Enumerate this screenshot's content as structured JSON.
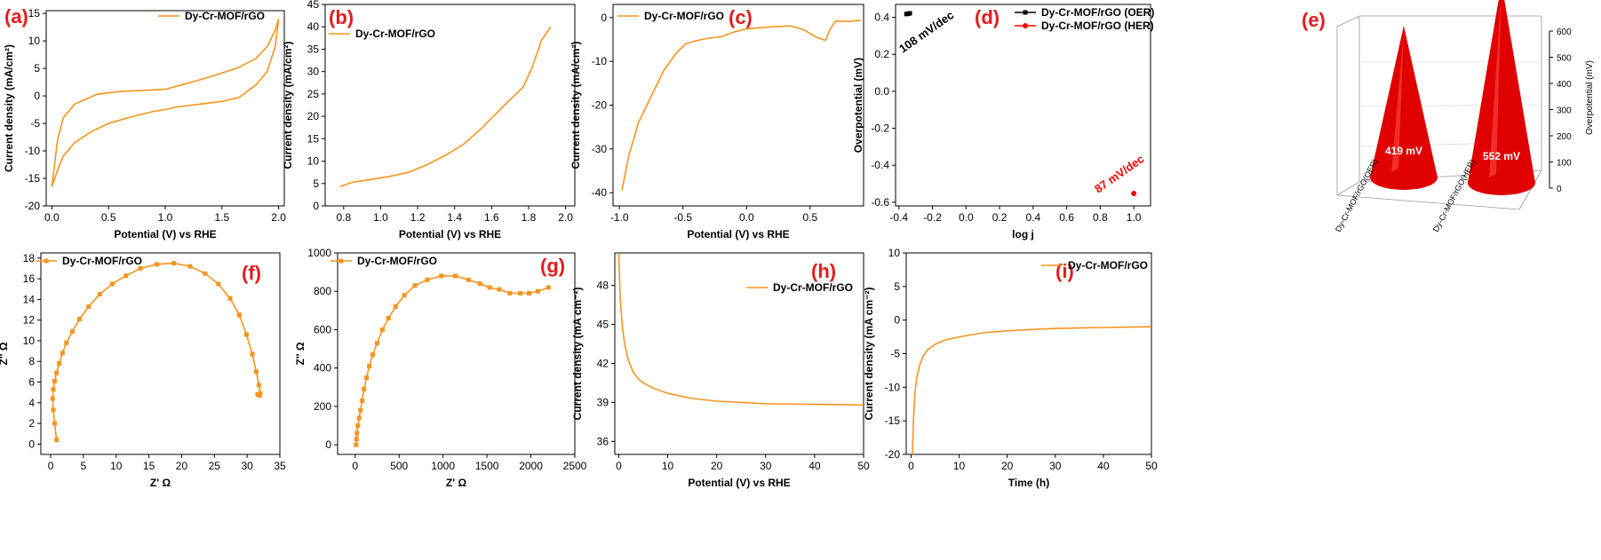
{
  "colors": {
    "series": "#f7941d",
    "oer": "#000000",
    "her": "#ff0000",
    "label": "#e41a1c",
    "cone": "#e00000"
  },
  "chart_data": [
    {
      "id": "a",
      "panel_label": "(a)",
      "type": "line",
      "xlabel": "Potential (V) vs RHE",
      "ylabel": "Current density (mA/cm²)",
      "xlim": [
        -0.05,
        2.05
      ],
      "ylim": [
        -20,
        15.5
      ],
      "xticks": [
        0.0,
        0.5,
        1.0,
        1.5,
        2.0
      ],
      "xtick_labels": [
        "0.0",
        "0.5",
        "1.0",
        "1.5",
        "2.0"
      ],
      "yticks": [
        -20,
        -15,
        -10,
        -5,
        0,
        5,
        10,
        15
      ],
      "ytick_labels": [
        "-20",
        "-15",
        "-10",
        "-5",
        "0",
        "5",
        "10",
        "15"
      ],
      "legend": [
        "Dy-Cr-MOF/rGO"
      ],
      "series": [
        {
          "name": "Dy-Cr-MOF/rGO",
          "x": [
            0.0,
            0.05,
            0.1,
            0.2,
            0.35,
            0.5,
            0.7,
            0.9,
            1.0,
            1.1,
            1.3,
            1.5,
            1.65,
            1.8,
            1.9,
            1.97,
            2.0,
            1.97,
            1.9,
            1.8,
            1.65,
            1.55,
            1.4,
            1.2,
            1.0,
            0.8,
            0.6,
            0.4,
            0.2,
            0.1,
            0.05,
            0.0
          ],
          "y": [
            -16.5,
            -13.5,
            -11,
            -8.5,
            -6.5,
            -5.0,
            -3.8,
            -2.8,
            -2.5,
            -2.0,
            -1.5,
            -1.0,
            -0.3,
            2.0,
            4.5,
            9.0,
            14.0,
            12.0,
            9.0,
            6.8,
            5.2,
            4.5,
            3.5,
            2.3,
            1.2,
            1.0,
            0.8,
            0.3,
            -1.5,
            -4.0,
            -8.0,
            -16.5
          ]
        }
      ]
    },
    {
      "id": "b",
      "panel_label": "(b)",
      "type": "line",
      "xlabel": "Potential (V) vs RHE",
      "ylabel": "Current density (mA/cm²)",
      "xlim": [
        0.7,
        2.05
      ],
      "ylim": [
        0,
        45
      ],
      "xticks": [
        0.8,
        1.0,
        1.2,
        1.4,
        1.6,
        1.8,
        2.0
      ],
      "xtick_labels": [
        "0.8",
        "1.0",
        "1.2",
        "1.4",
        "1.6",
        "1.8",
        "2.0"
      ],
      "yticks": [
        0,
        5,
        10,
        15,
        20,
        25,
        30,
        35,
        40,
        45
      ],
      "ytick_labels": [
        "0",
        "5",
        "10",
        "15",
        "20",
        "25",
        "30",
        "35",
        "40",
        "45"
      ],
      "legend": [
        "Dy-Cr-MOF/rGO"
      ],
      "series": [
        {
          "name": "Dy-Cr-MOF/rGO",
          "x": [
            0.78,
            0.85,
            0.95,
            1.05,
            1.15,
            1.25,
            1.35,
            1.45,
            1.55,
            1.65,
            1.72,
            1.77,
            1.82,
            1.87,
            1.92
          ],
          "y": [
            4.3,
            5.3,
            5.9,
            6.6,
            7.5,
            9.2,
            11.3,
            13.8,
            17.5,
            21.7,
            24.5,
            26.5,
            31,
            37,
            40
          ]
        }
      ]
    },
    {
      "id": "c",
      "panel_label": "(c)",
      "type": "line",
      "xlabel": "Potential (V) vs RHE",
      "ylabel": "Current density (mA/cm²)",
      "xlim": [
        -1.05,
        0.92
      ],
      "ylim": [
        -43,
        3
      ],
      "xticks": [
        -1.0,
        -0.5,
        0.0,
        0.5
      ],
      "xtick_labels": [
        "-1.0",
        "-0.5",
        "0.0",
        "0.5"
      ],
      "yticks": [
        -40,
        -30,
        -20,
        -10,
        0
      ],
      "ytick_labels": [
        "-40",
        "-30",
        "-20",
        "-10",
        "0"
      ],
      "legend": [
        "Dy-Cr-MOF/rGO"
      ],
      "series": [
        {
          "name": "Dy-Cr-MOF/rGO",
          "x": [
            -0.98,
            -0.93,
            -0.85,
            -0.75,
            -0.65,
            -0.55,
            -0.48,
            -0.4,
            -0.3,
            -0.2,
            -0.1,
            0.0,
            0.2,
            0.35,
            0.45,
            0.55,
            0.62,
            0.66,
            0.7,
            0.8,
            0.9
          ],
          "y": [
            -39.5,
            -32,
            -24,
            -18,
            -12,
            -8,
            -6,
            -5.3,
            -4.7,
            -4.4,
            -3.3,
            -2.6,
            -2.1,
            -1.9,
            -2.8,
            -4.5,
            -5.2,
            -2.5,
            -0.8,
            -0.9,
            -0.6
          ]
        }
      ]
    },
    {
      "id": "d",
      "panel_label": "(d)",
      "type": "scatter",
      "xlabel": "log j",
      "ylabel": "Overpotential (mV)",
      "xlim": [
        -0.42,
        1.1
      ],
      "ylim": [
        -0.62,
        0.47
      ],
      "xticks": [
        -0.4,
        -0.2,
        0.0,
        0.2,
        0.4,
        0.6,
        0.8,
        1.0
      ],
      "xtick_labels": [
        "-0.4",
        "-0.2",
        "0.0",
        "0.2",
        "0.4",
        "0.6",
        "0.8",
        "1.0"
      ],
      "yticks": [
        -0.6,
        -0.4,
        -0.2,
        0.0,
        0.2,
        0.4
      ],
      "ytick_labels": [
        "-0.6",
        "-0.4",
        "-0.2",
        "0.0",
        "0.2",
        "0.4"
      ],
      "legend": [
        "Dy-Cr-MOF/rGO (OER)",
        "Dy-Cr-MOF/rGO (HER)"
      ],
      "series": [
        {
          "name": "Dy-Cr-MOF/rGO (OER)",
          "x": [
            -0.355,
            -0.345,
            -0.335
          ],
          "y": [
            0.418,
            0.42,
            0.422
          ]
        },
        {
          "name": "Dy-Cr-MOF/rGO (HER)",
          "x": [
            1.0
          ],
          "y": [
            -0.553
          ]
        }
      ],
      "annotations": [
        "108 mV/dec",
        "87 mV/dec"
      ]
    },
    {
      "id": "e",
      "panel_label": "(e)",
      "type": "bar",
      "ylabel": "Overpotential (mV)",
      "ylim": [
        0,
        600
      ],
      "yticks": [
        0,
        100,
        200,
        300,
        400,
        500,
        600
      ],
      "ytick_labels": [
        "0",
        "100",
        "200",
        "300",
        "400",
        "500",
        "600"
      ],
      "categories": [
        "Dy-Cr-MOF/rGO(OER)",
        "Dy-Cr-MOF/rGO(HER)"
      ],
      "values": [
        419,
        552
      ],
      "value_labels": [
        "419 mV",
        "552 mV"
      ]
    },
    {
      "id": "f",
      "panel_label": "(f)",
      "type": "line",
      "xlabel": "Z' Ω",
      "ylabel": "Z'' Ω",
      "xlim": [
        -1.5,
        35
      ],
      "ylim": [
        -1,
        18.5
      ],
      "xticks": [
        0,
        5,
        10,
        15,
        20,
        25,
        30,
        35
      ],
      "xtick_labels": [
        "0",
        "5",
        "10",
        "15",
        "20",
        "25",
        "30",
        "35"
      ],
      "yticks": [
        0,
        2,
        4,
        6,
        8,
        10,
        12,
        14,
        16,
        18
      ],
      "ytick_labels": [
        "0",
        "2",
        "4",
        "6",
        "8",
        "10",
        "12",
        "14",
        "16",
        "18"
      ],
      "legend": [
        "Dy-Cr-MOF/rGO"
      ],
      "series": [
        {
          "name": "Dy-Cr-MOF/rGO",
          "x": [
            0.9,
            0.6,
            0.4,
            0.3,
            0.4,
            0.6,
            0.9,
            1.3,
            1.8,
            2.4,
            3.3,
            4.4,
            5.8,
            7.5,
            9.4,
            11.5,
            13.7,
            16.2,
            18.8,
            21.3,
            23.6,
            25.6,
            27.4,
            28.8,
            29.9,
            30.8,
            31.4,
            31.8,
            32.0,
            31.9,
            31.6
          ],
          "y": [
            0.4,
            2.0,
            3.3,
            4.4,
            5.3,
            6.1,
            6.9,
            7.8,
            8.8,
            9.8,
            10.9,
            12.1,
            13.3,
            14.5,
            15.5,
            16.3,
            17.0,
            17.4,
            17.5,
            17.2,
            16.5,
            15.5,
            14.1,
            12.5,
            10.6,
            8.7,
            7.0,
            5.7,
            4.9,
            4.7,
            4.8
          ]
        }
      ]
    },
    {
      "id": "g",
      "panel_label": "(g)",
      "type": "line",
      "xlabel": "Z' Ω",
      "ylabel": "Z'' Ω",
      "xlim": [
        -200,
        2500
      ],
      "ylim": [
        -50,
        1000
      ],
      "xticks": [
        0,
        500,
        1000,
        1500,
        2000,
        2500
      ],
      "xtick_labels": [
        "0",
        "500",
        "1000",
        "1500",
        "2000",
        "2500"
      ],
      "yticks": [
        0,
        200,
        400,
        600,
        800,
        1000
      ],
      "ytick_labels": [
        "0",
        "200",
        "400",
        "600",
        "800",
        "1000"
      ],
      "legend": [
        "Dy-Cr-MOF/rGO"
      ],
      "series": [
        {
          "name": "Dy-Cr-MOF/rGO",
          "x": [
            10,
            15,
            20,
            30,
            45,
            60,
            80,
            100,
            130,
            160,
            200,
            250,
            310,
            380,
            460,
            560,
            680,
            820,
            980,
            1140,
            1290,
            1420,
            1530,
            1640,
            1760,
            1880,
            1980,
            2080,
            2200
          ],
          "y": [
            0,
            30,
            60,
            100,
            140,
            180,
            230,
            290,
            350,
            410,
            470,
            530,
            600,
            660,
            720,
            780,
            830,
            860,
            880,
            880,
            860,
            840,
            820,
            810,
            790,
            790,
            790,
            800,
            820
          ]
        }
      ]
    },
    {
      "id": "h",
      "panel_label": "(h)",
      "type": "line",
      "xlabel": "Potential (V) vs RHE",
      "ylabel": "Current density (mA cm⁻²)",
      "xlim": [
        -0.8,
        50
      ],
      "ylim": [
        35,
        50.5
      ],
      "xticks": [
        0,
        10,
        20,
        30,
        40,
        50
      ],
      "xtick_labels": [
        "0",
        "10",
        "20",
        "30",
        "40",
        "50"
      ],
      "yticks": [
        36,
        39,
        42,
        45,
        48
      ],
      "ytick_labels": [
        "36",
        "39",
        "42",
        "45",
        "48"
      ],
      "legend": [
        "Dy-Cr-MOF/rGO"
      ],
      "series": [
        {
          "name": "Dy-Cr-MOF/rGO",
          "x": [
            0,
            0.3,
            0.7,
            1.2,
            2,
            3,
            4,
            5,
            7,
            10,
            15,
            20,
            25,
            30,
            40,
            50
          ],
          "y": [
            50.5,
            47,
            45,
            43.5,
            42.2,
            41.3,
            40.8,
            40.5,
            40.1,
            39.7,
            39.3,
            39.1,
            39.0,
            38.9,
            38.85,
            38.8
          ]
        }
      ]
    },
    {
      "id": "i",
      "panel_label": "(i)",
      "type": "line",
      "xlabel": "Time (h)",
      "ylabel": "Current density (mA cm⁻²)",
      "xlim": [
        -1,
        50
      ],
      "ylim": [
        -20,
        10
      ],
      "xticks": [
        0,
        10,
        20,
        30,
        40,
        50
      ],
      "xtick_labels": [
        "0",
        "10",
        "20",
        "30",
        "40",
        "50"
      ],
      "yticks": [
        -20,
        -15,
        -10,
        -5,
        0,
        5,
        10
      ],
      "ytick_labels": [
        "-20",
        "-15",
        "-10",
        "-5",
        "0",
        "5",
        "10"
      ],
      "legend": [
        "Dy-Cr-MOF/rGO"
      ],
      "series": [
        {
          "name": "Dy-Cr-MOF/rGO",
          "x": [
            0.3,
            0.5,
            0.8,
            1.2,
            1.8,
            2.5,
            3.5,
            5,
            7,
            10,
            15,
            20,
            25,
            30,
            40,
            50
          ],
          "y": [
            -20,
            -15,
            -11,
            -8.5,
            -6.7,
            -5.4,
            -4.4,
            -3.6,
            -3.0,
            -2.5,
            -1.9,
            -1.6,
            -1.4,
            -1.25,
            -1.1,
            -1.0
          ]
        }
      ]
    }
  ]
}
